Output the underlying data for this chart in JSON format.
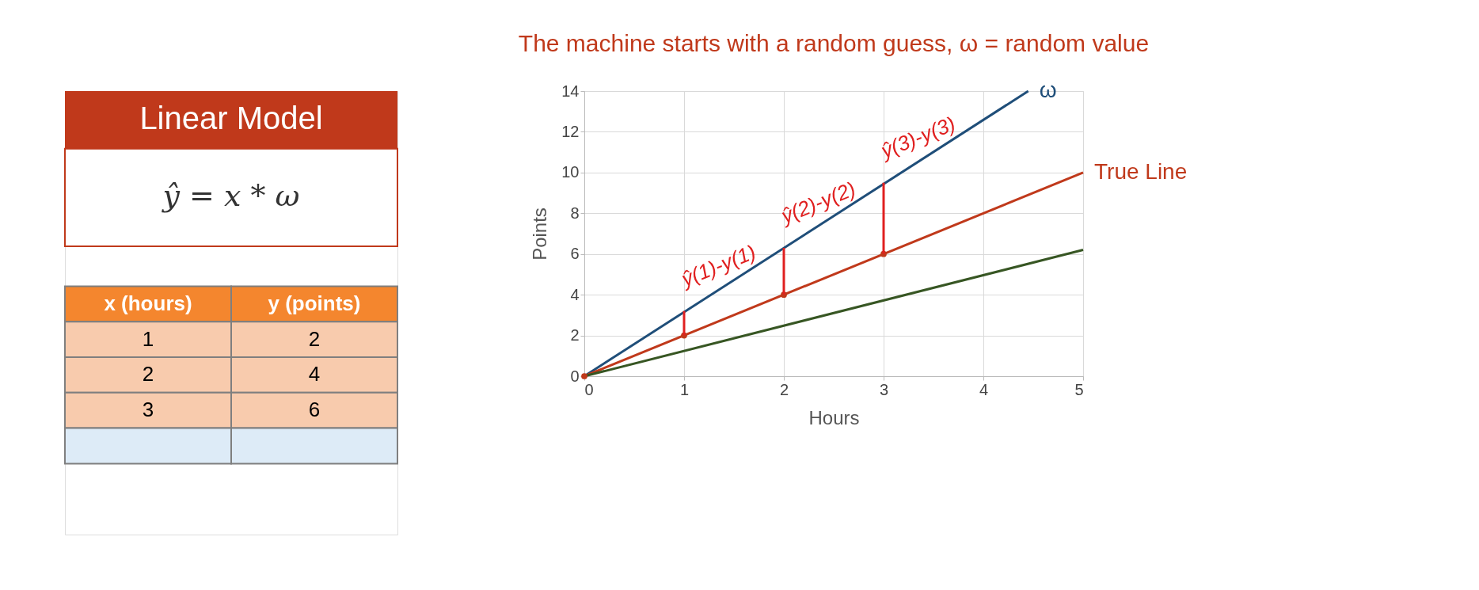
{
  "chart_data": [
    {
      "type": "other",
      "title": "Linear Model",
      "annotations": [
        "ŷ = x * ω",
        "x (hours)",
        "y (points)",
        "1",
        "2",
        "2",
        "4",
        "3",
        "6"
      ]
    },
    {
      "type": "line",
      "title": "The machine starts with a random guess, ω = random value",
      "xlabel": "Hours",
      "ylabel": "Points",
      "xlim": [
        0,
        5
      ],
      "ylim": [
        0,
        14
      ],
      "xticks": [
        0,
        1,
        2,
        3,
        4,
        5
      ],
      "yticks": [
        0,
        2,
        4,
        6,
        8,
        10,
        12,
        14
      ],
      "grid": true,
      "legend": false,
      "series": [
        {
          "name": "ω",
          "color": "#1f4e79",
          "x": [
            0,
            4.45
          ],
          "values": [
            0,
            14
          ]
        },
        {
          "name": "True Line",
          "color": "#c0391b",
          "x": [
            0,
            5
          ],
          "values": [
            0,
            10
          ]
        },
        {
          "color": "#375623",
          "x": [
            0,
            5
          ],
          "values": [
            0,
            6.2
          ]
        },
        {
          "type": "scatter",
          "color": "#c0391b",
          "marker": "circle",
          "x": [
            0,
            1,
            2,
            3
          ],
          "values": [
            0,
            2,
            4,
            6
          ]
        },
        {
          "color": "#e02020",
          "x": [
            1,
            1
          ],
          "values": [
            2,
            3.2
          ]
        },
        {
          "color": "#e02020",
          "x": [
            2,
            2
          ],
          "values": [
            4,
            6.3
          ]
        },
        {
          "color": "#e02020",
          "x": [
            3,
            3
          ],
          "values": [
            6,
            9.5
          ]
        }
      ],
      "annotations": [
        "ŷ(1)-y(1)",
        "ŷ(2)-y(2)",
        "ŷ(3)-y(3)"
      ]
    }
  ]
}
